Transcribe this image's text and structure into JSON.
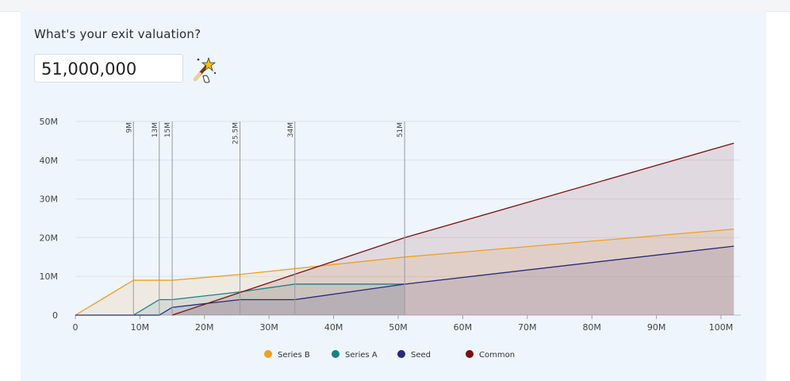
{
  "header": {
    "question": "What's your exit valuation?"
  },
  "valuation_input": {
    "value": "51,000,000"
  },
  "icons": {
    "wand": "magic-wand-icon"
  },
  "colors": {
    "series_b": "#f0a01e",
    "series_a": "#1f7f86",
    "seed": "#2a2a7a",
    "common": "#7a1010",
    "marker": "#9a9aa2",
    "panel_bg": "#eef5fd"
  },
  "chart_data": {
    "type": "area",
    "xlim": [
      0,
      102
    ],
    "ylim": [
      0,
      50
    ],
    "x_ticks": [
      "0",
      "10M",
      "20M",
      "30M",
      "40M",
      "50M",
      "60M",
      "70M",
      "80M",
      "90M",
      "100M"
    ],
    "y_ticks": [
      "0",
      "10M",
      "20M",
      "30M",
      "40M",
      "50M"
    ],
    "markers": [
      {
        "x": 9,
        "label": "9M"
      },
      {
        "x": 13,
        "label": "13M"
      },
      {
        "x": 15,
        "label": "15M"
      },
      {
        "x": 25.5,
        "label": "25.5M"
      },
      {
        "x": 34,
        "label": "34M"
      },
      {
        "x": 51,
        "label": "51M"
      }
    ],
    "series": [
      {
        "name": "Series B",
        "key": "series_b",
        "points": [
          [
            0,
            0
          ],
          [
            9,
            9
          ],
          [
            15,
            9
          ],
          [
            25.5,
            10.5
          ],
          [
            34,
            12
          ],
          [
            51,
            15
          ],
          [
            102,
            22.2
          ]
        ]
      },
      {
        "name": "Series A",
        "key": "series_a",
        "points": [
          [
            9,
            0
          ],
          [
            13,
            4
          ],
          [
            15,
            4
          ],
          [
            25.5,
            6
          ],
          [
            34,
            8
          ],
          [
            51,
            8
          ]
        ]
      },
      {
        "name": "Seed",
        "key": "seed",
        "points": [
          [
            0,
            0
          ],
          [
            13,
            0
          ],
          [
            15,
            2
          ],
          [
            25.5,
            4
          ],
          [
            34,
            4
          ],
          [
            51,
            8
          ],
          [
            102,
            17.8
          ]
        ]
      },
      {
        "name": "Common",
        "key": "common",
        "points": [
          [
            15,
            0
          ],
          [
            51,
            20
          ],
          [
            102,
            44.4
          ]
        ]
      }
    ],
    "legend": [
      "Series B",
      "Series A",
      "Seed",
      "Common"
    ],
    "legend_position": "bottom",
    "grid": true
  }
}
